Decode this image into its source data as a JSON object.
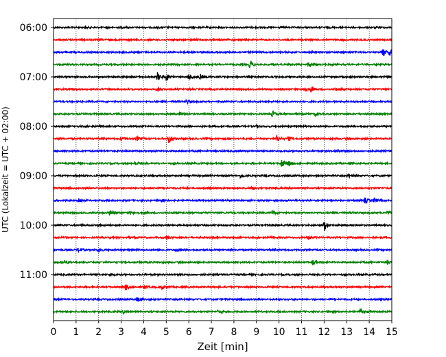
{
  "chart_data": {
    "type": "line",
    "title": "",
    "xlabel": "Zeit  [min]",
    "ylabel": "UTC (Lokalzeit = UTC + 02:00)",
    "xlim": [
      0,
      15
    ],
    "x_ticks": [
      "0",
      "1",
      "2",
      "3",
      "4",
      "5",
      "6",
      "7",
      "8",
      "9",
      "10",
      "11",
      "12",
      "13",
      "14",
      "15"
    ],
    "y_tick_labels": [
      "06:00",
      "07:00",
      "08:00",
      "09:00",
      "10:00",
      "11:00"
    ],
    "grid": "vertical dotted",
    "trace_interval_minutes": 15,
    "start_time": "06:00",
    "color_cycle": [
      "#000000",
      "#ff0000",
      "#0000ff",
      "#008000"
    ],
    "traces": [
      {
        "time": "06:00",
        "color": "#000000",
        "events": [
          [
            1.4,
            0.12
          ]
        ]
      },
      {
        "time": "06:15",
        "color": "#ff0000",
        "events": [
          [
            6.3,
            0.1
          ]
        ]
      },
      {
        "time": "06:30",
        "color": "#0000ff",
        "events": [
          [
            14.6,
            0.8
          ],
          [
            14.9,
            0.5
          ]
        ]
      },
      {
        "time": "06:45",
        "color": "#008000",
        "events": [
          [
            8.7,
            0.6
          ],
          [
            11.3,
            0.4
          ]
        ]
      },
      {
        "time": "07:00",
        "color": "#000000",
        "events": [
          [
            4.6,
            0.7
          ],
          [
            5.0,
            0.45
          ],
          [
            6.0,
            0.5
          ],
          [
            6.5,
            0.4
          ]
        ]
      },
      {
        "time": "07:15",
        "color": "#ff0000",
        "events": [
          [
            4.6,
            0.35
          ],
          [
            11.1,
            0.6
          ],
          [
            11.4,
            0.4
          ],
          [
            12.5,
            0.2
          ]
        ]
      },
      {
        "time": "07:30",
        "color": "#0000ff",
        "events": [
          [
            5.9,
            0.35
          ]
        ]
      },
      {
        "time": "07:45",
        "color": "#008000",
        "events": [
          [
            5.6,
            0.25
          ],
          [
            9.7,
            0.5
          ],
          [
            11.6,
            0.3
          ]
        ]
      },
      {
        "time": "08:00",
        "color": "#000000",
        "events": [
          [
            9.0,
            0.15
          ]
        ]
      },
      {
        "time": "08:15",
        "color": "#ff0000",
        "events": [
          [
            3.0,
            0.3
          ],
          [
            3.7,
            0.35
          ],
          [
            5.1,
            0.8
          ],
          [
            9.9,
            0.5
          ],
          [
            10.4,
            0.35
          ]
        ]
      },
      {
        "time": "08:30",
        "color": "#0000ff",
        "events": [
          [
            12.5,
            0.2
          ]
        ]
      },
      {
        "time": "08:45",
        "color": "#008000",
        "events": [
          [
            3.6,
            0.3
          ],
          [
            10.1,
            0.8
          ],
          [
            10.4,
            0.5
          ]
        ]
      },
      {
        "time": "09:00",
        "color": "#000000",
        "events": [
          [
            8.3,
            0.35
          ],
          [
            13.1,
            0.3
          ]
        ]
      },
      {
        "time": "09:15",
        "color": "#ff0000",
        "events": [
          [
            8.8,
            0.2
          ]
        ]
      },
      {
        "time": "09:30",
        "color": "#0000ff",
        "events": [
          [
            1.1,
            0.45
          ],
          [
            13.8,
            0.45
          ],
          [
            14.2,
            0.3
          ]
        ]
      },
      {
        "time": "09:45",
        "color": "#008000",
        "events": [
          [
            2.5,
            0.5
          ],
          [
            3.4,
            0.25
          ],
          [
            9.7,
            0.3
          ],
          [
            14.8,
            0.3
          ]
        ]
      },
      {
        "time": "10:00",
        "color": "#000000",
        "events": [
          [
            2.0,
            0.25
          ],
          [
            12.0,
            0.9
          ]
        ]
      },
      {
        "time": "10:15",
        "color": "#ff0000",
        "events": [
          [
            5.0,
            0.35
          ],
          [
            11.3,
            0.25
          ]
        ]
      },
      {
        "time": "10:30",
        "color": "#0000ff",
        "events": [
          [
            1.1,
            0.4
          ],
          [
            2.0,
            0.4
          ],
          [
            5.4,
            0.2
          ]
        ]
      },
      {
        "time": "10:45",
        "color": "#008000",
        "events": [
          [
            0.5,
            0.4
          ],
          [
            11.5,
            0.45
          ],
          [
            14.8,
            0.35
          ]
        ]
      },
      {
        "time": "11:00",
        "color": "#000000",
        "events": [
          [
            2.5,
            0.2
          ]
        ]
      },
      {
        "time": "11:15",
        "color": "#ff0000",
        "events": [
          [
            3.2,
            0.5
          ],
          [
            4.0,
            0.3
          ],
          [
            4.8,
            0.4
          ]
        ]
      },
      {
        "time": "11:30",
        "color": "#0000ff",
        "events": [
          [
            3.7,
            0.4
          ]
        ]
      },
      {
        "time": "11:45",
        "color": "#008000",
        "events": [
          [
            3.1,
            0.35
          ],
          [
            7.3,
            0.3
          ],
          [
            13.6,
            0.5
          ]
        ]
      }
    ]
  }
}
